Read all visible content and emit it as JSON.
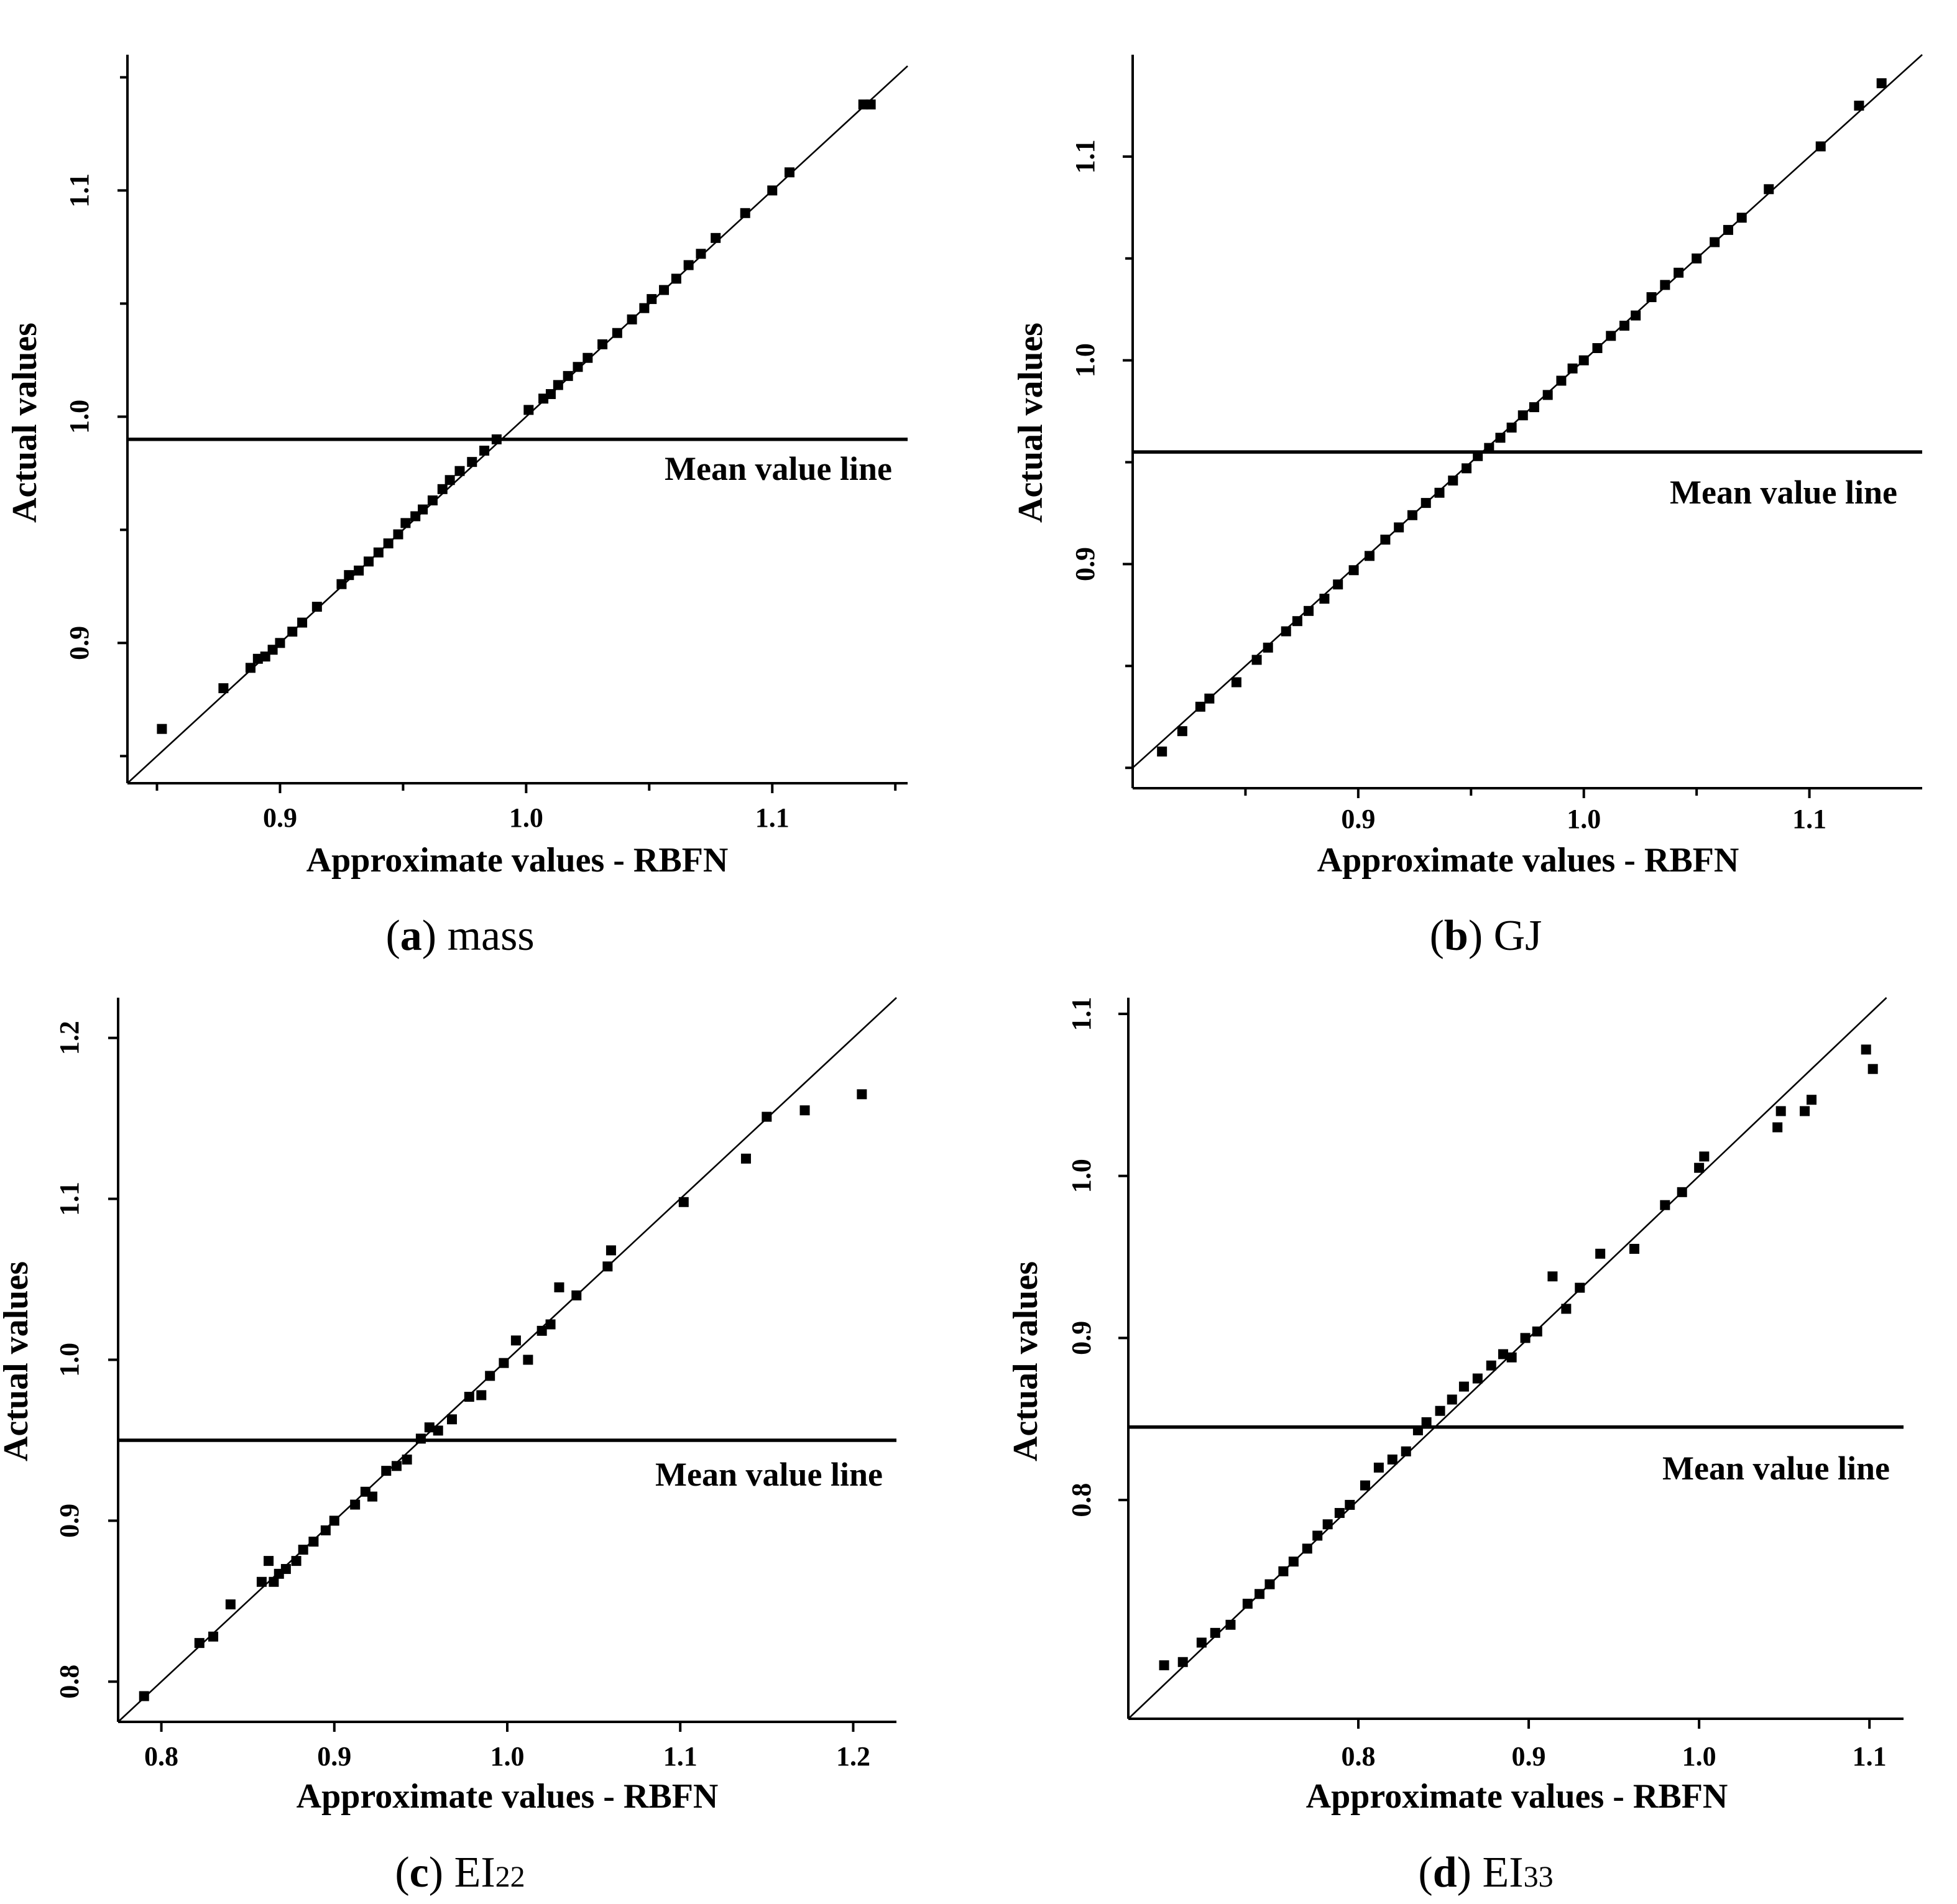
{
  "figure": {
    "panels": [
      {
        "id": "a",
        "caption_letter": "a",
        "caption_text": "mass",
        "caption_sub": ""
      },
      {
        "id": "b",
        "caption_letter": "b",
        "caption_text": "GJ",
        "caption_sub": ""
      },
      {
        "id": "c",
        "caption_letter": "c",
        "caption_text": "EI",
        "caption_sub": "22"
      },
      {
        "id": "d",
        "caption_letter": "d",
        "caption_text": "EI",
        "caption_sub": "33"
      }
    ]
  },
  "chart_data": [
    {
      "type": "scatter",
      "title": "(a) mass",
      "xlabel": "Approximate values - RBFN",
      "ylabel": "Actual values",
      "xlim": [
        0.838,
        1.155
      ],
      "ylim": [
        0.838,
        1.16
      ],
      "xticks": [
        0.9,
        1.0,
        1.1
      ],
      "xtick_labels": [
        "0.9",
        "1.0",
        "1.1"
      ],
      "xminor": [
        0.85,
        0.95,
        1.05,
        1.15
      ],
      "yticks": [
        0.9,
        1.0,
        1.1
      ],
      "ytick_labels": [
        "0.9",
        "1.0",
        "1.1"
      ],
      "yminor": [
        0.85,
        0.95,
        1.05,
        1.15
      ],
      "reference_line": "y = x",
      "mean_value": 0.99,
      "mean_label": "Mean value line",
      "x": [
        0.852,
        0.877,
        0.888,
        0.891,
        0.894,
        0.897,
        0.9,
        0.905,
        0.909,
        0.915,
        0.925,
        0.928,
        0.932,
        0.936,
        0.94,
        0.944,
        0.948,
        0.951,
        0.955,
        0.958,
        0.962,
        0.966,
        0.969,
        0.973,
        0.978,
        0.983,
        0.988,
        1.001,
        1.007,
        1.01,
        1.013,
        1.017,
        1.021,
        1.025,
        1.031,
        1.037,
        1.043,
        1.048,
        1.051,
        1.056,
        1.061,
        1.066,
        1.071,
        1.077,
        1.089,
        1.1,
        1.107,
        1.137,
        1.14
      ],
      "y": [
        0.862,
        0.88,
        0.889,
        0.893,
        0.894,
        0.897,
        0.9,
        0.905,
        0.909,
        0.916,
        0.926,
        0.93,
        0.932,
        0.936,
        0.94,
        0.944,
        0.948,
        0.953,
        0.956,
        0.959,
        0.963,
        0.968,
        0.972,
        0.976,
        0.98,
        0.985,
        0.99,
        1.003,
        1.008,
        1.01,
        1.014,
        1.018,
        1.022,
        1.026,
        1.032,
        1.037,
        1.043,
        1.048,
        1.052,
        1.056,
        1.061,
        1.067,
        1.072,
        1.079,
        1.09,
        1.1,
        1.108,
        1.138,
        1.138
      ]
    },
    {
      "type": "scatter",
      "title": "(b) GJ",
      "xlabel": "Approximate values - RBFN",
      "ylabel": "Actual values",
      "xlim": [
        0.8,
        1.15
      ],
      "ylim": [
        0.79,
        1.15
      ],
      "xticks": [
        0.9,
        1.0,
        1.1
      ],
      "xtick_labels": [
        "0.9",
        "1.0",
        "1.1"
      ],
      "xminor": [
        0.85,
        0.95,
        1.05
      ],
      "yticks": [
        0.9,
        1.0,
        1.1
      ],
      "ytick_labels": [
        "0.9",
        "1.0",
        "1.1"
      ],
      "yminor": [
        0.8,
        0.85,
        0.95,
        1.05
      ],
      "reference_line": "y = x",
      "mean_value": 0.955,
      "mean_label": "Mean value line",
      "x": [
        0.813,
        0.822,
        0.83,
        0.834,
        0.846,
        0.855,
        0.86,
        0.868,
        0.873,
        0.878,
        0.885,
        0.891,
        0.898,
        0.905,
        0.912,
        0.918,
        0.924,
        0.93,
        0.936,
        0.942,
        0.948,
        0.953,
        0.958,
        0.963,
        0.968,
        0.973,
        0.978,
        0.984,
        0.99,
        0.995,
        1.0,
        1.006,
        1.012,
        1.018,
        1.023,
        1.03,
        1.036,
        1.042,
        1.05,
        1.058,
        1.064,
        1.07,
        1.082,
        1.105,
        1.122,
        1.132
      ],
      "y": [
        0.808,
        0.818,
        0.83,
        0.834,
        0.842,
        0.853,
        0.859,
        0.867,
        0.872,
        0.877,
        0.883,
        0.89,
        0.897,
        0.904,
        0.912,
        0.918,
        0.924,
        0.93,
        0.935,
        0.941,
        0.947,
        0.953,
        0.957,
        0.962,
        0.967,
        0.973,
        0.977,
        0.983,
        0.99,
        0.996,
        1.0,
        1.006,
        1.012,
        1.017,
        1.022,
        1.031,
        1.037,
        1.043,
        1.05,
        1.058,
        1.064,
        1.07,
        1.084,
        1.105,
        1.125,
        1.136
      ]
    },
    {
      "type": "scatter",
      "title": "(c) EI22",
      "xlabel": "Approximate values - RBFN",
      "ylabel": "Actual values",
      "xlim": [
        0.775,
        1.225
      ],
      "ylim": [
        0.775,
        1.225
      ],
      "xticks": [
        0.8,
        0.9,
        1.0,
        1.1,
        1.2
      ],
      "xtick_labels": [
        "0.8",
        "0.9",
        "1.0",
        "1.1",
        "1.2"
      ],
      "xminor": [],
      "yticks": [
        0.8,
        0.9,
        1.0,
        1.1,
        1.2
      ],
      "ytick_labels": [
        "0.8",
        "0.9",
        "1.0",
        "1.1",
        "1.2"
      ],
      "yminor": [],
      "reference_line": "y = x",
      "mean_value": 0.95,
      "mean_label": "Mean value line",
      "x": [
        0.79,
        0.822,
        0.83,
        0.84,
        0.858,
        0.862,
        0.865,
        0.868,
        0.872,
        0.878,
        0.882,
        0.888,
        0.895,
        0.9,
        0.912,
        0.918,
        0.922,
        0.93,
        0.936,
        0.942,
        0.95,
        0.955,
        0.96,
        0.968,
        0.978,
        0.985,
        0.99,
        0.998,
        1.005,
        1.012,
        1.02,
        1.025,
        1.03,
        1.04,
        1.058,
        1.06,
        1.102,
        1.138,
        1.15,
        1.172,
        1.205
      ],
      "y": [
        0.791,
        0.824,
        0.828,
        0.848,
        0.862,
        0.875,
        0.862,
        0.867,
        0.87,
        0.875,
        0.882,
        0.887,
        0.894,
        0.9,
        0.91,
        0.918,
        0.915,
        0.931,
        0.934,
        0.938,
        0.951,
        0.958,
        0.956,
        0.963,
        0.977,
        0.978,
        0.99,
        0.998,
        1.012,
        1.0,
        1.018,
        1.022,
        1.045,
        1.04,
        1.058,
        1.068,
        1.098,
        1.125,
        1.151,
        1.155,
        1.165
      ]
    },
    {
      "type": "scatter",
      "title": "(d) EI33",
      "xlabel": "Approximate values - RBFN",
      "ylabel": "Actual values",
      "xlim": [
        0.665,
        1.12
      ],
      "ylim": [
        0.665,
        1.11
      ],
      "xticks": [
        0.8,
        0.9,
        1.0,
        1.1
      ],
      "xtick_labels": [
        "0.8",
        "0.9",
        "1.0",
        "1.1"
      ],
      "xminor": [],
      "yticks": [
        0.8,
        0.9,
        1.0,
        1.1
      ],
      "ytick_labels": [
        "0.8",
        "0.9",
        "1.0",
        "1.1"
      ],
      "yminor": [],
      "reference_line": "y = x",
      "mean_value": 0.845,
      "mean_label": "Mean value line",
      "x": [
        0.686,
        0.697,
        0.708,
        0.716,
        0.725,
        0.735,
        0.742,
        0.748,
        0.756,
        0.762,
        0.77,
        0.776,
        0.782,
        0.789,
        0.795,
        0.804,
        0.812,
        0.82,
        0.828,
        0.835,
        0.84,
        0.848,
        0.855,
        0.862,
        0.87,
        0.878,
        0.885,
        0.89,
        0.898,
        0.905,
        0.914,
        0.922,
        0.93,
        0.942,
        0.962,
        0.98,
        0.99,
        1.0,
        1.003,
        1.046,
        1.048,
        1.062,
        1.066,
        1.098,
        1.102
      ],
      "y": [
        0.698,
        0.7,
        0.712,
        0.718,
        0.723,
        0.736,
        0.742,
        0.748,
        0.756,
        0.762,
        0.77,
        0.778,
        0.785,
        0.792,
        0.797,
        0.809,
        0.82,
        0.825,
        0.83,
        0.843,
        0.848,
        0.855,
        0.862,
        0.87,
        0.875,
        0.883,
        0.89,
        0.888,
        0.9,
        0.904,
        0.938,
        0.918,
        0.931,
        0.952,
        0.955,
        0.982,
        0.99,
        1.005,
        1.012,
        1.03,
        1.04,
        1.04,
        1.047,
        1.078,
        1.066
      ]
    }
  ]
}
